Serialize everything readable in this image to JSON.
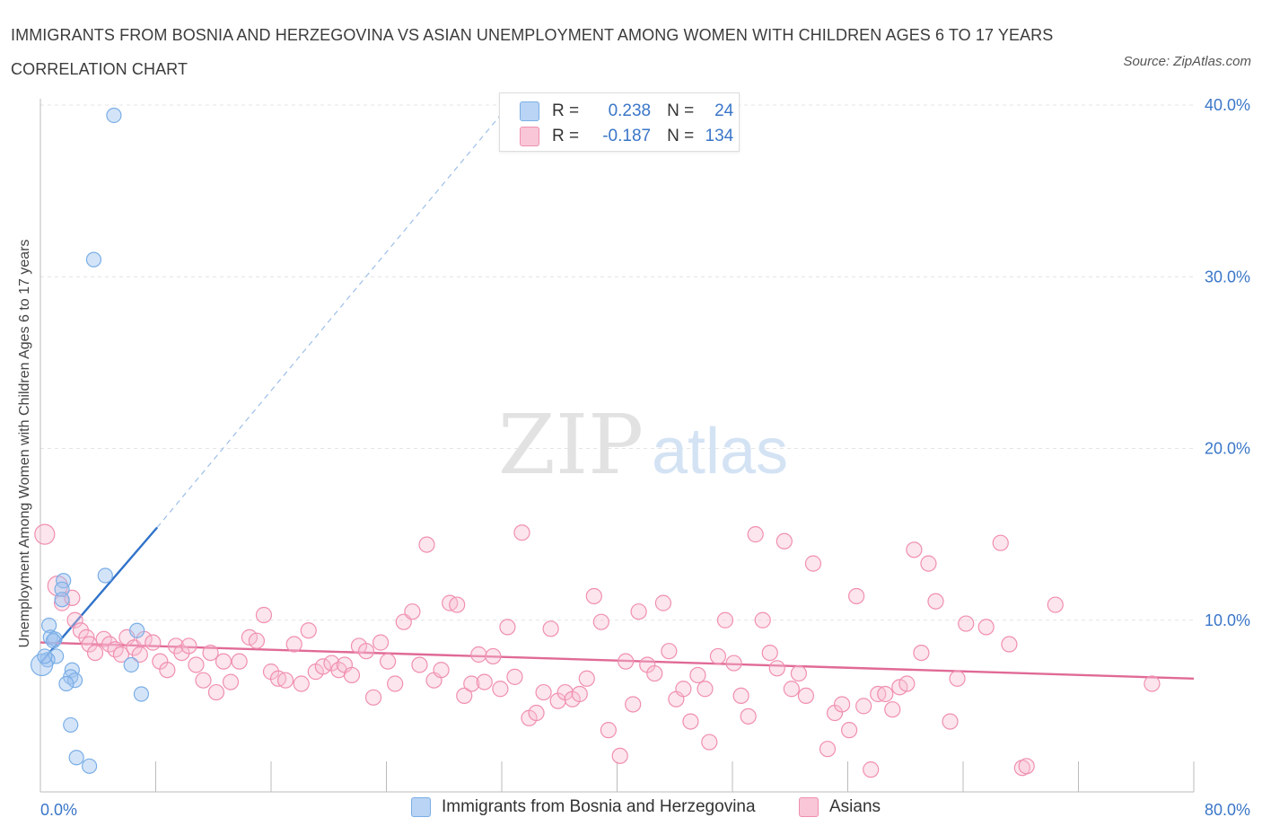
{
  "title": "IMMIGRANTS FROM BOSNIA AND HERZEGOVINA VS ASIAN UNEMPLOYMENT AMONG WOMEN WITH CHILDREN AGES 6 TO 17 YEARS CORRELATION CHART",
  "source": "Source: ZipAtlas.com",
  "watermark": {
    "zip": "ZIP",
    "atlas": "atlas"
  },
  "colors": {
    "blue": "#7aaee6",
    "blue_line": "#2f72c9",
    "pink": "#f08fb0",
    "pink_line": "#e06a96",
    "axis_text": "#3a76c8",
    "grid": "#e4e4e4"
  },
  "legend": {
    "r_label": "R =",
    "n_label": "N =",
    "entries": [
      {
        "name": "Immigrants from Bosnia and Herzegovina",
        "r": "0.238",
        "n": "24",
        "color": "#b9d4f4"
      },
      {
        "name": "Asians",
        "r": "-0.187",
        "n": "134",
        "color": "#f8c6d6"
      }
    ]
  },
  "chart_data": {
    "type": "scatter",
    "title": "IMMIGRANTS FROM BOSNIA AND HERZEGOVINA VS ASIAN UNEMPLOYMENT AMONG WOMEN WITH CHILDREN AGES 6 TO 17 YEARS CORRELATION CHART",
    "xlabel": "",
    "ylabel": "Unemployment Among Women with Children Ages 6 to 17 years",
    "xlim": [
      0,
      80
    ],
    "ylim": [
      0,
      40
    ],
    "x_tick_labels": [
      "0.0%",
      "80.0%"
    ],
    "y_ticks": [
      10,
      20,
      30,
      40
    ],
    "y_tick_labels": [
      "10.0%",
      "20.0%",
      "30.0%",
      "40.0%"
    ],
    "grid": true,
    "legend_position": "top-center",
    "series": [
      {
        "name": "Immigrants from Bosnia and Herzegovina",
        "color": "#7aaee6",
        "points": [
          [
            5.1,
            39.4
          ],
          [
            3.7,
            31.0
          ],
          [
            4.5,
            12.6
          ],
          [
            1.6,
            12.3
          ],
          [
            1.5,
            11.8
          ],
          [
            1.5,
            11.2
          ],
          [
            0.6,
            9.7
          ],
          [
            6.7,
            9.4
          ],
          [
            0.7,
            9.0
          ],
          [
            1.0,
            8.9
          ],
          [
            1.1,
            7.9
          ],
          [
            0.5,
            7.7
          ],
          [
            0.1,
            7.4
          ],
          [
            2.2,
            7.1
          ],
          [
            6.3,
            7.4
          ],
          [
            2.1,
            6.7
          ],
          [
            2.4,
            6.5
          ],
          [
            1.8,
            6.3
          ],
          [
            7.0,
            5.7
          ],
          [
            2.1,
            3.9
          ],
          [
            2.5,
            2.0
          ],
          [
            3.4,
            1.5
          ],
          [
            0.3,
            7.9
          ],
          [
            0.9,
            8.8
          ]
        ],
        "trend": {
          "x0": 0,
          "y0": 7.5,
          "x1": 8.1,
          "y1": 15.4,
          "dashed_to": [
            32,
            39.5
          ]
        }
      },
      {
        "name": "Asians",
        "color": "#f08fb0",
        "points": [
          [
            0.3,
            15.0
          ],
          [
            1.2,
            12.0
          ],
          [
            1.5,
            11.0
          ],
          [
            2.2,
            11.3
          ],
          [
            2.4,
            10.0
          ],
          [
            2.8,
            9.4
          ],
          [
            3.2,
            9.0
          ],
          [
            3.4,
            8.6
          ],
          [
            3.8,
            8.1
          ],
          [
            4.4,
            8.9
          ],
          [
            4.8,
            8.6
          ],
          [
            5.2,
            8.3
          ],
          [
            5.6,
            8.0
          ],
          [
            6.0,
            9.0
          ],
          [
            6.5,
            8.4
          ],
          [
            6.9,
            8.0
          ],
          [
            7.2,
            8.9
          ],
          [
            7.8,
            8.7
          ],
          [
            8.3,
            7.6
          ],
          [
            8.8,
            7.1
          ],
          [
            9.4,
            8.5
          ],
          [
            9.8,
            8.1
          ],
          [
            10.3,
            8.5
          ],
          [
            10.8,
            7.4
          ],
          [
            11.3,
            6.5
          ],
          [
            11.8,
            8.1
          ],
          [
            12.2,
            5.8
          ],
          [
            12.7,
            7.6
          ],
          [
            13.2,
            6.4
          ],
          [
            13.8,
            7.6
          ],
          [
            14.5,
            9.0
          ],
          [
            15.0,
            8.8
          ],
          [
            15.5,
            10.3
          ],
          [
            16.0,
            7.0
          ],
          [
            16.5,
            6.6
          ],
          [
            17.0,
            6.5
          ],
          [
            17.6,
            8.6
          ],
          [
            18.1,
            6.3
          ],
          [
            18.6,
            9.4
          ],
          [
            19.1,
            7.0
          ],
          [
            19.6,
            7.3
          ],
          [
            20.2,
            7.5
          ],
          [
            20.7,
            7.1
          ],
          [
            21.1,
            7.4
          ],
          [
            21.6,
            6.8
          ],
          [
            22.1,
            8.5
          ],
          [
            22.6,
            8.2
          ],
          [
            23.1,
            5.5
          ],
          [
            23.6,
            8.7
          ],
          [
            24.1,
            7.6
          ],
          [
            24.6,
            6.3
          ],
          [
            25.2,
            9.9
          ],
          [
            25.8,
            10.5
          ],
          [
            26.3,
            7.4
          ],
          [
            26.8,
            14.4
          ],
          [
            27.3,
            6.5
          ],
          [
            27.8,
            7.1
          ],
          [
            28.4,
            11.0
          ],
          [
            28.9,
            10.9
          ],
          [
            29.4,
            5.6
          ],
          [
            29.9,
            6.3
          ],
          [
            30.4,
            8.0
          ],
          [
            30.8,
            6.4
          ],
          [
            31.4,
            7.9
          ],
          [
            31.9,
            6.0
          ],
          [
            32.4,
            9.6
          ],
          [
            32.9,
            6.7
          ],
          [
            33.4,
            15.1
          ],
          [
            33.9,
            4.3
          ],
          [
            34.4,
            4.6
          ],
          [
            34.9,
            5.8
          ],
          [
            35.4,
            9.5
          ],
          [
            35.9,
            5.3
          ],
          [
            36.4,
            5.8
          ],
          [
            36.9,
            5.4
          ],
          [
            37.4,
            5.7
          ],
          [
            37.9,
            6.6
          ],
          [
            38.4,
            11.4
          ],
          [
            38.9,
            9.9
          ],
          [
            39.4,
            3.6
          ],
          [
            40.2,
            2.1
          ],
          [
            40.6,
            7.6
          ],
          [
            41.1,
            5.1
          ],
          [
            41.5,
            10.5
          ],
          [
            42.1,
            7.4
          ],
          [
            42.6,
            6.9
          ],
          [
            43.2,
            11.0
          ],
          [
            43.6,
            8.2
          ],
          [
            44.1,
            5.4
          ],
          [
            44.6,
            6.0
          ],
          [
            45.1,
            4.1
          ],
          [
            45.6,
            6.8
          ],
          [
            46.1,
            6.0
          ],
          [
            46.4,
            2.9
          ],
          [
            47.0,
            7.9
          ],
          [
            47.5,
            10.0
          ],
          [
            48.1,
            7.5
          ],
          [
            48.6,
            5.6
          ],
          [
            49.1,
            4.4
          ],
          [
            49.6,
            15.0
          ],
          [
            50.1,
            10.0
          ],
          [
            50.6,
            8.1
          ],
          [
            51.1,
            7.2
          ],
          [
            51.6,
            14.6
          ],
          [
            52.1,
            6.0
          ],
          [
            52.6,
            6.9
          ],
          [
            53.1,
            5.6
          ],
          [
            53.6,
            13.3
          ],
          [
            54.6,
            2.5
          ],
          [
            55.1,
            4.6
          ],
          [
            55.6,
            5.1
          ],
          [
            56.1,
            3.6
          ],
          [
            56.6,
            11.4
          ],
          [
            57.1,
            5.0
          ],
          [
            57.6,
            1.3
          ],
          [
            58.1,
            5.7
          ],
          [
            58.6,
            5.7
          ],
          [
            59.1,
            4.8
          ],
          [
            59.6,
            6.1
          ],
          [
            60.1,
            6.3
          ],
          [
            60.6,
            14.1
          ],
          [
            61.1,
            8.1
          ],
          [
            61.6,
            13.3
          ],
          [
            62.1,
            11.1
          ],
          [
            63.1,
            4.1
          ],
          [
            63.6,
            6.6
          ],
          [
            64.2,
            9.8
          ],
          [
            65.6,
            9.6
          ],
          [
            66.6,
            14.5
          ],
          [
            67.2,
            8.6
          ],
          [
            68.1,
            1.4
          ],
          [
            68.4,
            1.5
          ],
          [
            70.4,
            10.9
          ],
          [
            77.1,
            6.3
          ]
        ],
        "trend": {
          "x0": 0,
          "y0": 8.7,
          "x1": 80,
          "y1": 6.6
        }
      }
    ]
  }
}
